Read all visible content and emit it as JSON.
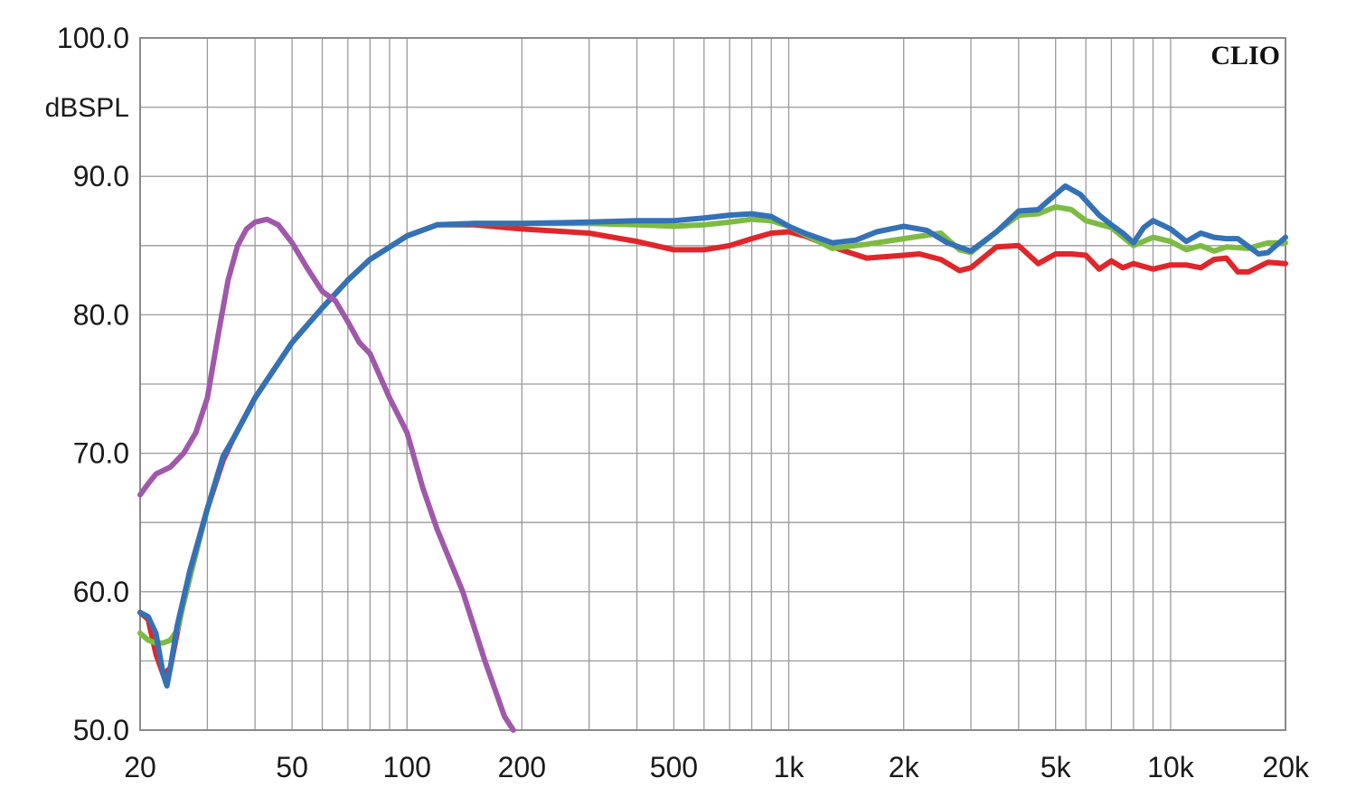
{
  "chart_data": {
    "type": "line",
    "title": "",
    "xlabel": "",
    "ylabel": "dBSPL",
    "brand": "CLIO",
    "x_scale": "log",
    "xlim": [
      20,
      20000
    ],
    "ylim": [
      50,
      100
    ],
    "grid": true,
    "x_ticks": [
      {
        "value": 20,
        "label": "20"
      },
      {
        "value": 50,
        "label": "50"
      },
      {
        "value": 100,
        "label": "100"
      },
      {
        "value": 200,
        "label": "200"
      },
      {
        "value": 500,
        "label": "500"
      },
      {
        "value": 1000,
        "label": "1k"
      },
      {
        "value": 2000,
        "label": "2k"
      },
      {
        "value": 5000,
        "label": "5k"
      },
      {
        "value": 10000,
        "label": "10k"
      },
      {
        "value": 20000,
        "label": "20k"
      }
    ],
    "y_ticks": [
      {
        "value": 100,
        "label": "100.0"
      },
      {
        "value": 90,
        "label": "90.0"
      },
      {
        "value": 80,
        "label": "80.0"
      },
      {
        "value": 70,
        "label": "70.0"
      },
      {
        "value": 60,
        "label": "60.0"
      },
      {
        "value": 50,
        "label": "50.0"
      }
    ],
    "series": [
      {
        "color": "#e0262b",
        "points": [
          [
            20,
            58.5
          ],
          [
            21,
            58
          ],
          [
            22,
            55.5
          ],
          [
            23,
            54
          ],
          [
            24,
            54.5
          ],
          [
            25,
            57
          ],
          [
            27,
            61.5
          ],
          [
            30,
            66
          ],
          [
            33,
            69.5
          ],
          [
            35,
            71
          ],
          [
            40,
            74
          ],
          [
            50,
            78
          ],
          [
            60,
            80.5
          ],
          [
            70,
            82.5
          ],
          [
            80,
            84
          ],
          [
            100,
            85.7
          ],
          [
            120,
            86.5
          ],
          [
            150,
            86.5
          ],
          [
            200,
            86.2
          ],
          [
            300,
            85.9
          ],
          [
            400,
            85.3
          ],
          [
            500,
            84.7
          ],
          [
            600,
            84.7
          ],
          [
            700,
            85
          ],
          [
            800,
            85.5
          ],
          [
            900,
            85.9
          ],
          [
            1000,
            86
          ],
          [
            1100,
            85.7
          ],
          [
            1300,
            84.9
          ],
          [
            1600,
            84.1
          ],
          [
            2000,
            84.3
          ],
          [
            2200,
            84.4
          ],
          [
            2500,
            84
          ],
          [
            2800,
            83.2
          ],
          [
            3000,
            83.4
          ],
          [
            3500,
            84.9
          ],
          [
            4000,
            85
          ],
          [
            4500,
            83.7
          ],
          [
            5000,
            84.4
          ],
          [
            5500,
            84.4
          ],
          [
            6000,
            84.3
          ],
          [
            6500,
            83.3
          ],
          [
            7000,
            83.9
          ],
          [
            7500,
            83.4
          ],
          [
            8000,
            83.7
          ],
          [
            9000,
            83.3
          ],
          [
            10000,
            83.6
          ],
          [
            11000,
            83.6
          ],
          [
            12000,
            83.4
          ],
          [
            13000,
            84
          ],
          [
            14000,
            84.1
          ],
          [
            15000,
            83.1
          ],
          [
            16000,
            83.1
          ],
          [
            18000,
            83.8
          ],
          [
            20000,
            83.7
          ]
        ]
      },
      {
        "color": "#7dbb42",
        "points": [
          [
            20,
            57
          ],
          [
            21,
            56.5
          ],
          [
            22,
            56.3
          ],
          [
            23,
            56.3
          ],
          [
            24,
            56.5
          ],
          [
            25,
            57.2
          ],
          [
            27,
            61
          ],
          [
            30,
            66
          ],
          [
            33,
            69.8
          ],
          [
            35,
            71
          ],
          [
            40,
            74
          ],
          [
            50,
            78
          ],
          [
            60,
            80.5
          ],
          [
            70,
            82.5
          ],
          [
            80,
            84
          ],
          [
            100,
            85.7
          ],
          [
            120,
            86.5
          ],
          [
            150,
            86.6
          ],
          [
            200,
            86.6
          ],
          [
            300,
            86.6
          ],
          [
            400,
            86.5
          ],
          [
            500,
            86.4
          ],
          [
            600,
            86.5
          ],
          [
            700,
            86.7
          ],
          [
            800,
            86.9
          ],
          [
            900,
            86.8
          ],
          [
            1000,
            86.4
          ],
          [
            1100,
            85.8
          ],
          [
            1300,
            84.8
          ],
          [
            1600,
            85.1
          ],
          [
            2000,
            85.5
          ],
          [
            2500,
            85.9
          ],
          [
            2800,
            84.7
          ],
          [
            3000,
            84.5
          ],
          [
            3500,
            86
          ],
          [
            4000,
            87.2
          ],
          [
            4500,
            87.3
          ],
          [
            5000,
            87.8
          ],
          [
            5500,
            87.6
          ],
          [
            6000,
            86.8
          ],
          [
            7000,
            86.3
          ],
          [
            8000,
            85
          ],
          [
            9000,
            85.6
          ],
          [
            10000,
            85.3
          ],
          [
            11000,
            84.7
          ],
          [
            12000,
            85
          ],
          [
            13000,
            84.6
          ],
          [
            14000,
            84.9
          ],
          [
            16000,
            84.8
          ],
          [
            18000,
            85.2
          ],
          [
            20000,
            85.2
          ]
        ]
      },
      {
        "color": "#3471b6",
        "points": [
          [
            20,
            58.5
          ],
          [
            21,
            58.2
          ],
          [
            22,
            57
          ],
          [
            23,
            54
          ],
          [
            23.5,
            53.2
          ],
          [
            24,
            54.5
          ],
          [
            25,
            57.5
          ],
          [
            27,
            61.5
          ],
          [
            30,
            66
          ],
          [
            33,
            69.8
          ],
          [
            35,
            71
          ],
          [
            40,
            74
          ],
          [
            50,
            78
          ],
          [
            60,
            80.5
          ],
          [
            70,
            82.5
          ],
          [
            80,
            84
          ],
          [
            100,
            85.7
          ],
          [
            120,
            86.5
          ],
          [
            150,
            86.6
          ],
          [
            200,
            86.6
          ],
          [
            300,
            86.7
          ],
          [
            400,
            86.8
          ],
          [
            500,
            86.8
          ],
          [
            600,
            87
          ],
          [
            700,
            87.2
          ],
          [
            800,
            87.3
          ],
          [
            900,
            87.1
          ],
          [
            1000,
            86.4
          ],
          [
            1100,
            85.9
          ],
          [
            1300,
            85.2
          ],
          [
            1500,
            85.4
          ],
          [
            1700,
            86
          ],
          [
            2000,
            86.4
          ],
          [
            2300,
            86.1
          ],
          [
            2600,
            85.2
          ],
          [
            3000,
            84.6
          ],
          [
            3500,
            86
          ],
          [
            4000,
            87.5
          ],
          [
            4500,
            87.6
          ],
          [
            5000,
            88.7
          ],
          [
            5300,
            89.3
          ],
          [
            5800,
            88.7
          ],
          [
            6500,
            87.2
          ],
          [
            7000,
            86.5
          ],
          [
            7500,
            85.9
          ],
          [
            8000,
            85.2
          ],
          [
            8500,
            86.3
          ],
          [
            9000,
            86.8
          ],
          [
            10000,
            86.2
          ],
          [
            11000,
            85.3
          ],
          [
            12000,
            85.9
          ],
          [
            13000,
            85.6
          ],
          [
            14000,
            85.5
          ],
          [
            15000,
            85.5
          ],
          [
            17000,
            84.4
          ],
          [
            18000,
            84.5
          ],
          [
            20000,
            85.6
          ]
        ]
      },
      {
        "color": "#a058ab",
        "points": [
          [
            20,
            67
          ],
          [
            21,
            67.8
          ],
          [
            22,
            68.5
          ],
          [
            24,
            69
          ],
          [
            26,
            70
          ],
          [
            28,
            71.5
          ],
          [
            30,
            74
          ],
          [
            32,
            78.5
          ],
          [
            34,
            82.5
          ],
          [
            36,
            85
          ],
          [
            38,
            86.2
          ],
          [
            40,
            86.7
          ],
          [
            43,
            86.9
          ],
          [
            46,
            86.5
          ],
          [
            50,
            85.2
          ],
          [
            55,
            83.3
          ],
          [
            60,
            81.7
          ],
          [
            65,
            81
          ],
          [
            70,
            79.5
          ],
          [
            75,
            78
          ],
          [
            80,
            77.2
          ],
          [
            90,
            74
          ],
          [
            100,
            71.5
          ],
          [
            110,
            67.5
          ],
          [
            120,
            64.5
          ],
          [
            140,
            60
          ],
          [
            160,
            55
          ],
          [
            180,
            51
          ],
          [
            190,
            50
          ]
        ]
      }
    ]
  }
}
